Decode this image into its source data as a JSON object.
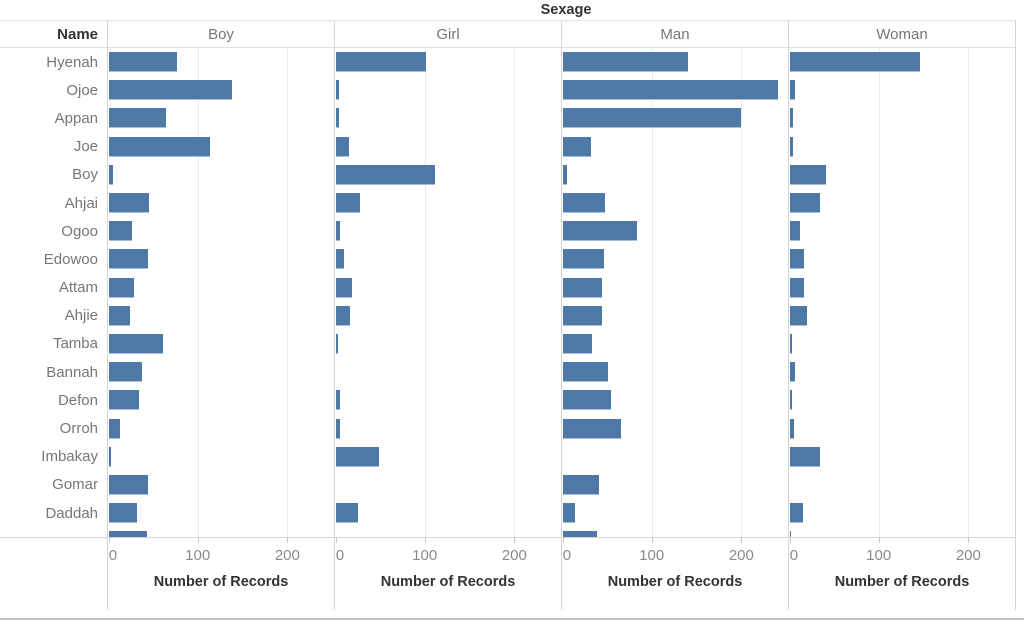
{
  "chart_data": {
    "type": "bar",
    "orientation": "horizontal",
    "title": "Sexage",
    "row_header": "Name",
    "xlabel": "Number of Records",
    "x_ticks": [
      0,
      100,
      200
    ],
    "xlim": [
      0,
      252
    ],
    "grid": true,
    "bar_color": "#4e79a7",
    "legend_position": "none",
    "clipped_last_row": true,
    "categories": [
      "Hyenah",
      "Ojoe",
      "Appan",
      "Joe",
      "Boy",
      "Ahjai",
      "Ogoo",
      "Edowoo",
      "Attam",
      "Ahjie",
      "Tamba",
      "Bannah",
      "Defon",
      "Orroh",
      "Imbakay",
      "Gomar",
      "Daddah",
      ""
    ],
    "series": [
      {
        "name": "Boy",
        "values": [
          76,
          137,
          63,
          113,
          5,
          45,
          26,
          43,
          28,
          23,
          60,
          37,
          33,
          12,
          2,
          44,
          31,
          42
        ]
      },
      {
        "name": "Girl",
        "values": [
          100,
          3,
          3,
          14,
          110,
          27,
          5,
          9,
          18,
          16,
          2,
          0,
          4,
          5,
          48,
          0,
          25,
          0
        ]
      },
      {
        "name": "Man",
        "values": [
          139,
          240,
          198,
          31,
          4,
          47,
          82,
          46,
          44,
          43,
          32,
          50,
          53,
          65,
          0,
          40,
          13,
          38
        ]
      },
      {
        "name": "Woman",
        "values": [
          145,
          6,
          3,
          3,
          40,
          33,
          11,
          16,
          16,
          19,
          2,
          6,
          2,
          4,
          33,
          0,
          14,
          1
        ]
      }
    ]
  }
}
